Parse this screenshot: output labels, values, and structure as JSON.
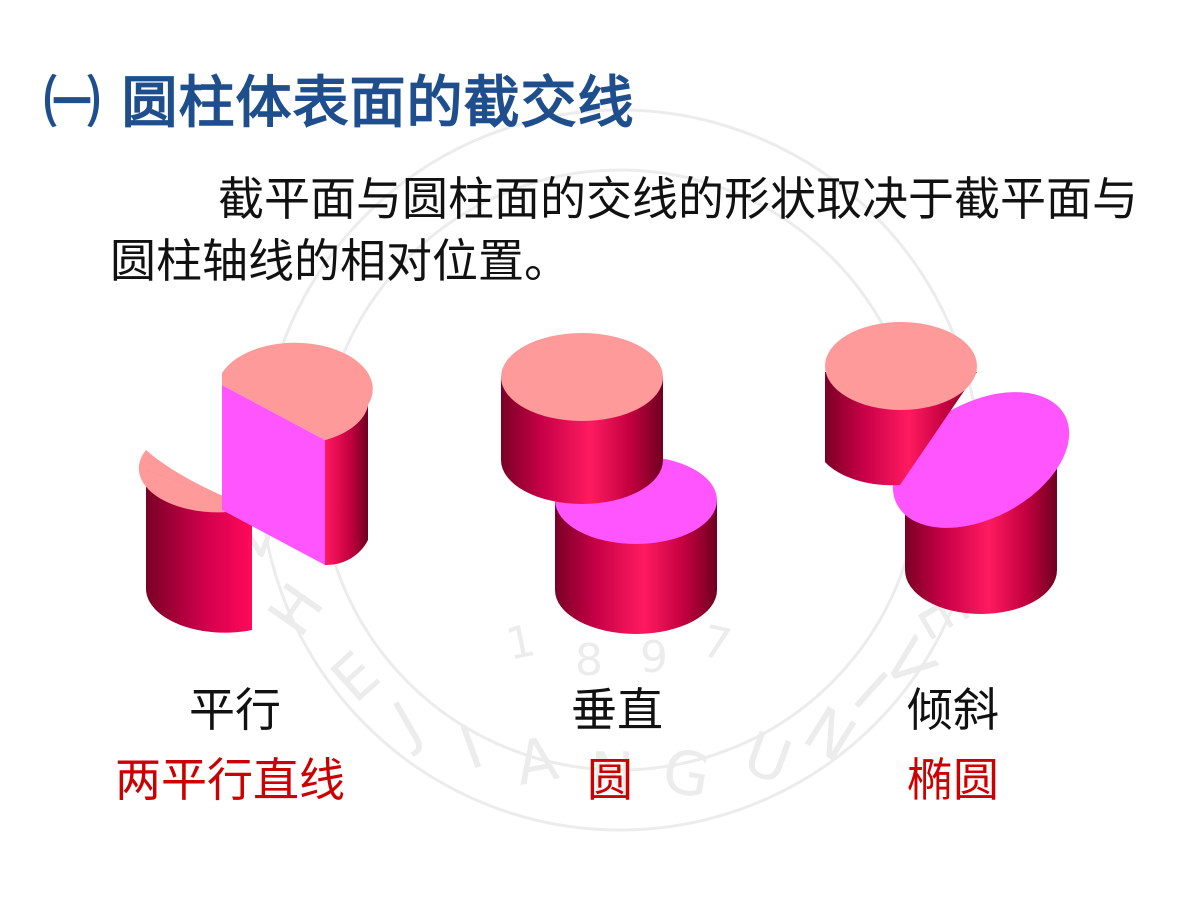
{
  "title": "㈠ 圆柱体表面的截交线",
  "description": "截平面与圆柱面的交线的形状取决于截平面与圆柱轴线的相对位置。",
  "cases": [
    {
      "position": "平行",
      "result": "两平行直线"
    },
    {
      "position": "垂直",
      "result": "圆"
    },
    {
      "position": "倾斜",
      "result": "椭圆"
    }
  ],
  "watermark": {
    "text": "ZHEJIANG UNIVERSITY",
    "year": "1897"
  },
  "colors": {
    "title": "#1f4e8c",
    "result_text": "#cc0000",
    "cylinder_side": "#cc0044",
    "cylinder_top": "#ff9999",
    "section_face": "#ff55ff"
  }
}
